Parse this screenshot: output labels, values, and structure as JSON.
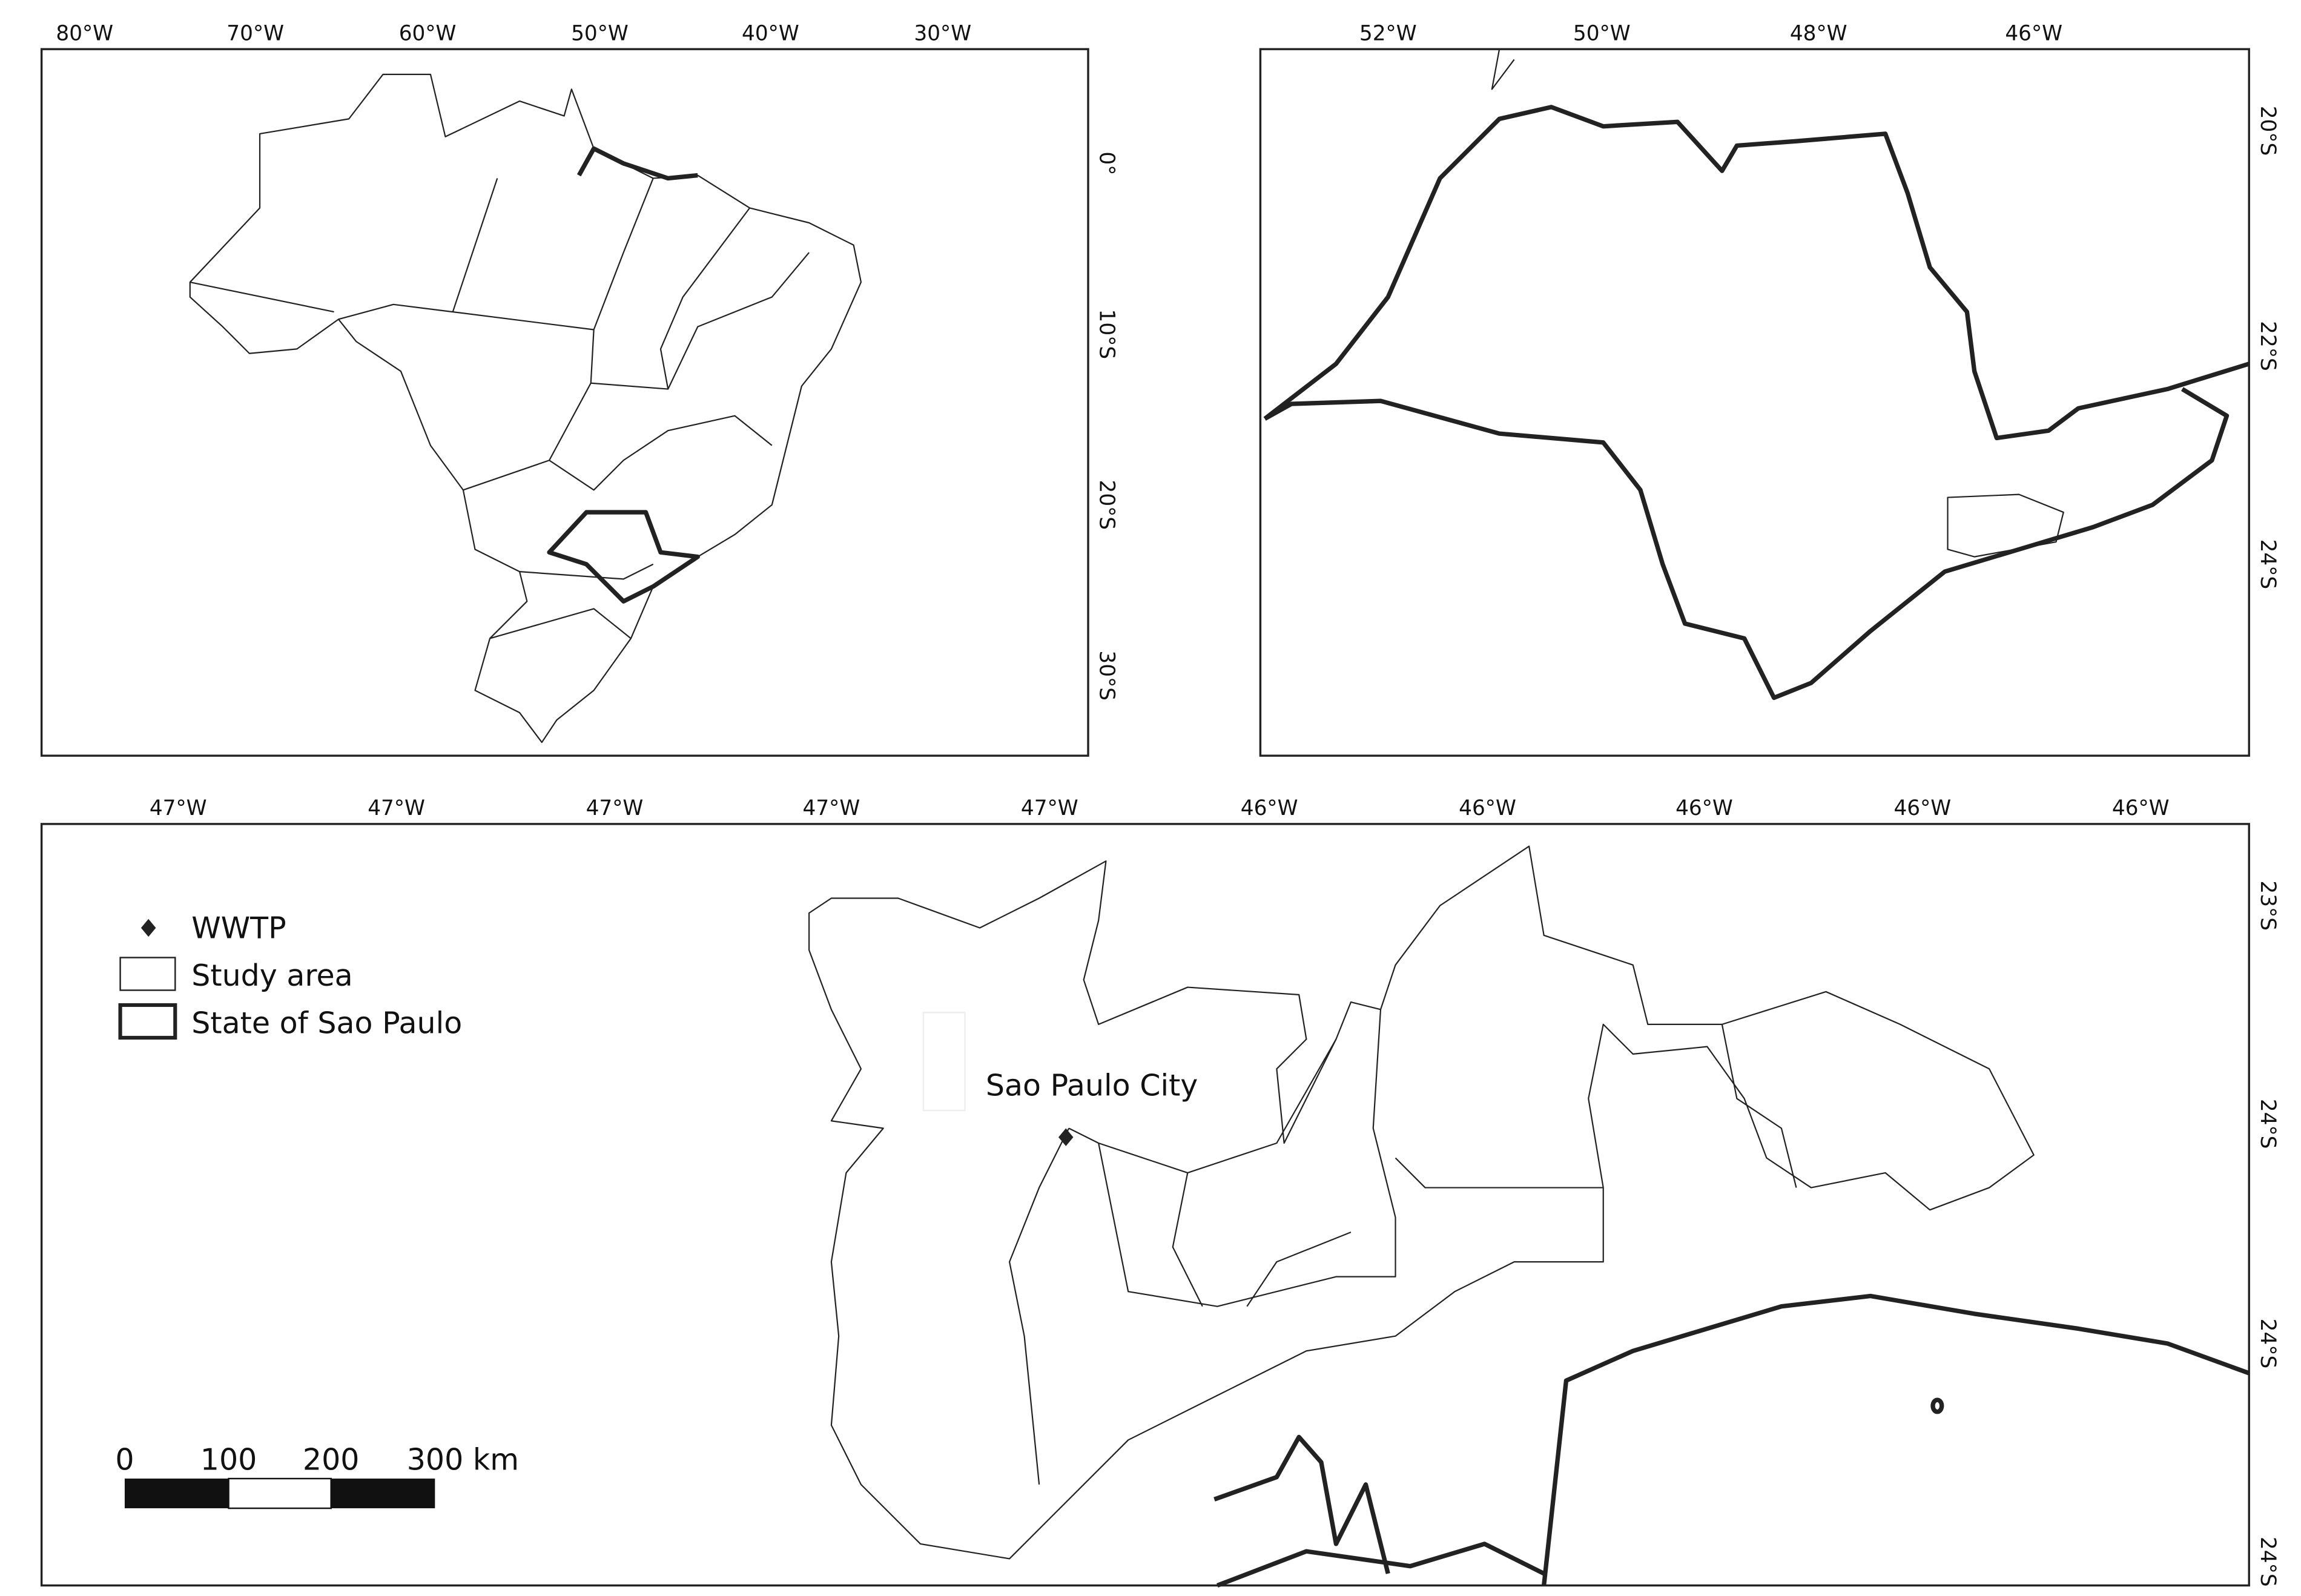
{
  "panels": [
    {
      "x_labels": [
        "80°W",
        "70°W",
        "60°W",
        "50°W",
        "40°W",
        "30°W"
      ],
      "y_labels": [
        "0°",
        "10°S",
        "20°S",
        "30°S"
      ]
    },
    {
      "x_labels": [
        "52°W",
        "50°W",
        "48°W",
        "46°W"
      ],
      "y_labels": [
        "20°S",
        "22°S",
        "24°S"
      ]
    },
    {
      "x_labels": [
        "47°W",
        "47°W",
        "47°W",
        "47°W",
        "47°W",
        "46°W",
        "46°W",
        "46°W",
        "46°W",
        "46°W"
      ],
      "y_labels": [
        "23°S",
        "24°S",
        "24°S",
        "24°S"
      ]
    }
  ],
  "legend": {
    "items": [
      "WWTP",
      "Study area",
      "State of Sao Paulo"
    ]
  },
  "scale_bar": {
    "labels": [
      "0",
      "100",
      "200",
      "300 km"
    ]
  },
  "place_label": "Sao Paulo City"
}
